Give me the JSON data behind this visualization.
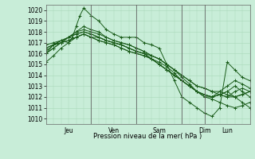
{
  "background_color": "#c8edd8",
  "grid_color": "#a8d8b8",
  "line_color": "#1a5c1a",
  "ylim": [
    1009.5,
    1020.5
  ],
  "yticks": [
    1010,
    1011,
    1012,
    1013,
    1014,
    1015,
    1016,
    1017,
    1018,
    1019,
    1020
  ],
  "xlabel": "Pression niveau de la mer( hPa )",
  "day_labels": [
    "Jeu",
    "Ven",
    "Sam",
    "Dim",
    "Lun"
  ],
  "day_x": [
    12,
    36,
    60,
    84,
    96
  ],
  "vline_x": [
    0,
    24,
    48,
    72,
    84,
    100
  ],
  "xlim": [
    0,
    108
  ],
  "lines": [
    {
      "x": [
        0,
        4,
        8,
        12,
        14,
        16,
        18,
        20,
        24,
        28,
        32,
        36,
        40,
        44,
        48,
        52,
        56,
        60,
        64,
        68,
        72,
        76,
        80,
        84,
        88,
        92,
        96,
        100,
        104,
        108
      ],
      "y": [
        1016.0,
        1016.8,
        1017.2,
        1017.0,
        1017.5,
        1018.5,
        1019.5,
        1020.2,
        1019.5,
        1019.0,
        1018.2,
        1017.8,
        1017.5,
        1017.5,
        1017.5,
        1017.0,
        1016.8,
        1016.5,
        1015.0,
        1013.5,
        1012.0,
        1011.5,
        1011.0,
        1010.5,
        1010.2,
        1011.0,
        1015.2,
        1014.5,
        1013.8,
        1013.5
      ]
    },
    {
      "x": [
        0,
        4,
        8,
        12,
        16,
        20,
        24,
        28,
        32,
        36,
        40,
        44,
        48,
        52,
        56,
        60,
        64,
        68,
        72,
        76,
        80,
        84,
        88,
        92,
        96,
        100,
        104,
        108
      ],
      "y": [
        1016.5,
        1016.8,
        1017.0,
        1017.2,
        1017.5,
        1017.8,
        1017.5,
        1017.5,
        1017.2,
        1017.0,
        1016.8,
        1016.5,
        1016.2,
        1016.0,
        1015.8,
        1015.5,
        1015.0,
        1014.5,
        1013.8,
        1013.2,
        1012.5,
        1012.0,
        1012.0,
        1012.2,
        1012.5,
        1012.0,
        1011.5,
        1011.0
      ]
    },
    {
      "x": [
        0,
        4,
        8,
        12,
        16,
        20,
        24,
        28,
        32,
        36,
        40,
        44,
        48,
        52,
        56,
        60,
        64,
        68,
        72,
        76,
        80,
        84,
        88,
        92,
        96,
        100,
        104,
        108
      ],
      "y": [
        1016.2,
        1016.8,
        1017.0,
        1017.2,
        1017.5,
        1017.8,
        1017.5,
        1017.2,
        1017.0,
        1016.8,
        1016.5,
        1016.2,
        1016.0,
        1015.8,
        1015.5,
        1015.2,
        1014.8,
        1014.2,
        1013.5,
        1013.0,
        1012.5,
        1012.2,
        1012.0,
        1012.2,
        1012.5,
        1013.0,
        1012.5,
        1012.0
      ]
    },
    {
      "x": [
        0,
        4,
        8,
        12,
        16,
        20,
        24,
        28,
        32,
        36,
        40,
        44,
        48,
        52,
        56,
        60,
        64,
        68,
        72,
        76,
        80,
        84,
        88,
        92,
        96,
        100,
        104,
        108
      ],
      "y": [
        1016.0,
        1016.5,
        1017.0,
        1017.5,
        1017.8,
        1018.0,
        1017.8,
        1017.5,
        1017.2,
        1017.0,
        1016.8,
        1016.5,
        1016.2,
        1016.0,
        1015.5,
        1015.0,
        1014.5,
        1014.0,
        1013.5,
        1013.0,
        1012.5,
        1012.2,
        1012.0,
        1012.2,
        1012.0,
        1012.5,
        1012.8,
        1012.5
      ]
    },
    {
      "x": [
        0,
        4,
        8,
        12,
        16,
        20,
        24,
        28,
        32,
        36,
        40,
        44,
        48,
        52,
        56,
        60,
        64,
        68,
        72,
        76,
        80,
        84,
        88,
        92,
        96,
        100,
        104,
        108
      ],
      "y": [
        1016.0,
        1016.5,
        1017.0,
        1017.5,
        1018.0,
        1018.2,
        1018.0,
        1017.8,
        1017.5,
        1017.2,
        1017.0,
        1016.8,
        1016.5,
        1016.2,
        1015.8,
        1015.5,
        1015.0,
        1014.5,
        1014.0,
        1013.5,
        1013.0,
        1012.8,
        1012.5,
        1012.5,
        1012.2,
        1012.0,
        1012.2,
        1012.5
      ]
    },
    {
      "x": [
        0,
        4,
        8,
        12,
        16,
        20,
        24,
        28,
        32,
        36,
        40,
        44,
        48,
        52,
        56,
        60,
        64,
        68,
        72,
        76,
        80,
        84,
        88,
        92,
        96,
        100,
        104,
        108
      ],
      "y": [
        1015.2,
        1015.8,
        1016.5,
        1017.0,
        1017.5,
        1017.8,
        1017.5,
        1017.2,
        1017.0,
        1016.8,
        1016.5,
        1016.2,
        1016.0,
        1015.8,
        1015.5,
        1015.0,
        1014.5,
        1014.0,
        1013.5,
        1013.0,
        1012.5,
        1012.0,
        1011.8,
        1011.5,
        1011.2,
        1011.0,
        1011.2,
        1011.5
      ]
    },
    {
      "x": [
        0,
        6,
        12,
        16,
        20,
        24,
        28,
        32,
        36,
        40,
        44,
        48,
        52,
        56,
        60,
        64,
        68,
        72,
        76,
        80,
        84,
        88,
        92,
        96,
        100,
        108
      ],
      "y": [
        1016.5,
        1017.0,
        1017.5,
        1018.0,
        1018.5,
        1018.2,
        1018.0,
        1017.5,
        1017.2,
        1017.0,
        1016.8,
        1016.5,
        1016.2,
        1015.8,
        1015.5,
        1015.0,
        1014.5,
        1014.0,
        1013.5,
        1013.0,
        1012.8,
        1012.5,
        1012.2,
        1012.0,
        1012.0,
        1012.5
      ]
    },
    {
      "x": [
        0,
        4,
        8,
        12,
        16,
        20,
        24,
        28,
        32,
        36,
        40,
        44,
        48,
        52,
        56,
        60,
        64,
        68,
        72,
        76,
        80,
        84,
        88,
        92,
        96,
        100,
        104,
        108
      ],
      "y": [
        1016.8,
        1017.0,
        1017.2,
        1017.5,
        1017.8,
        1018.0,
        1017.8,
        1017.5,
        1017.2,
        1017.0,
        1016.8,
        1016.5,
        1016.2,
        1016.0,
        1015.5,
        1015.0,
        1014.5,
        1014.0,
        1013.5,
        1013.0,
        1012.5,
        1012.2,
        1012.0,
        1012.5,
        1013.0,
        1013.5,
        1013.2,
        1012.8
      ]
    }
  ]
}
